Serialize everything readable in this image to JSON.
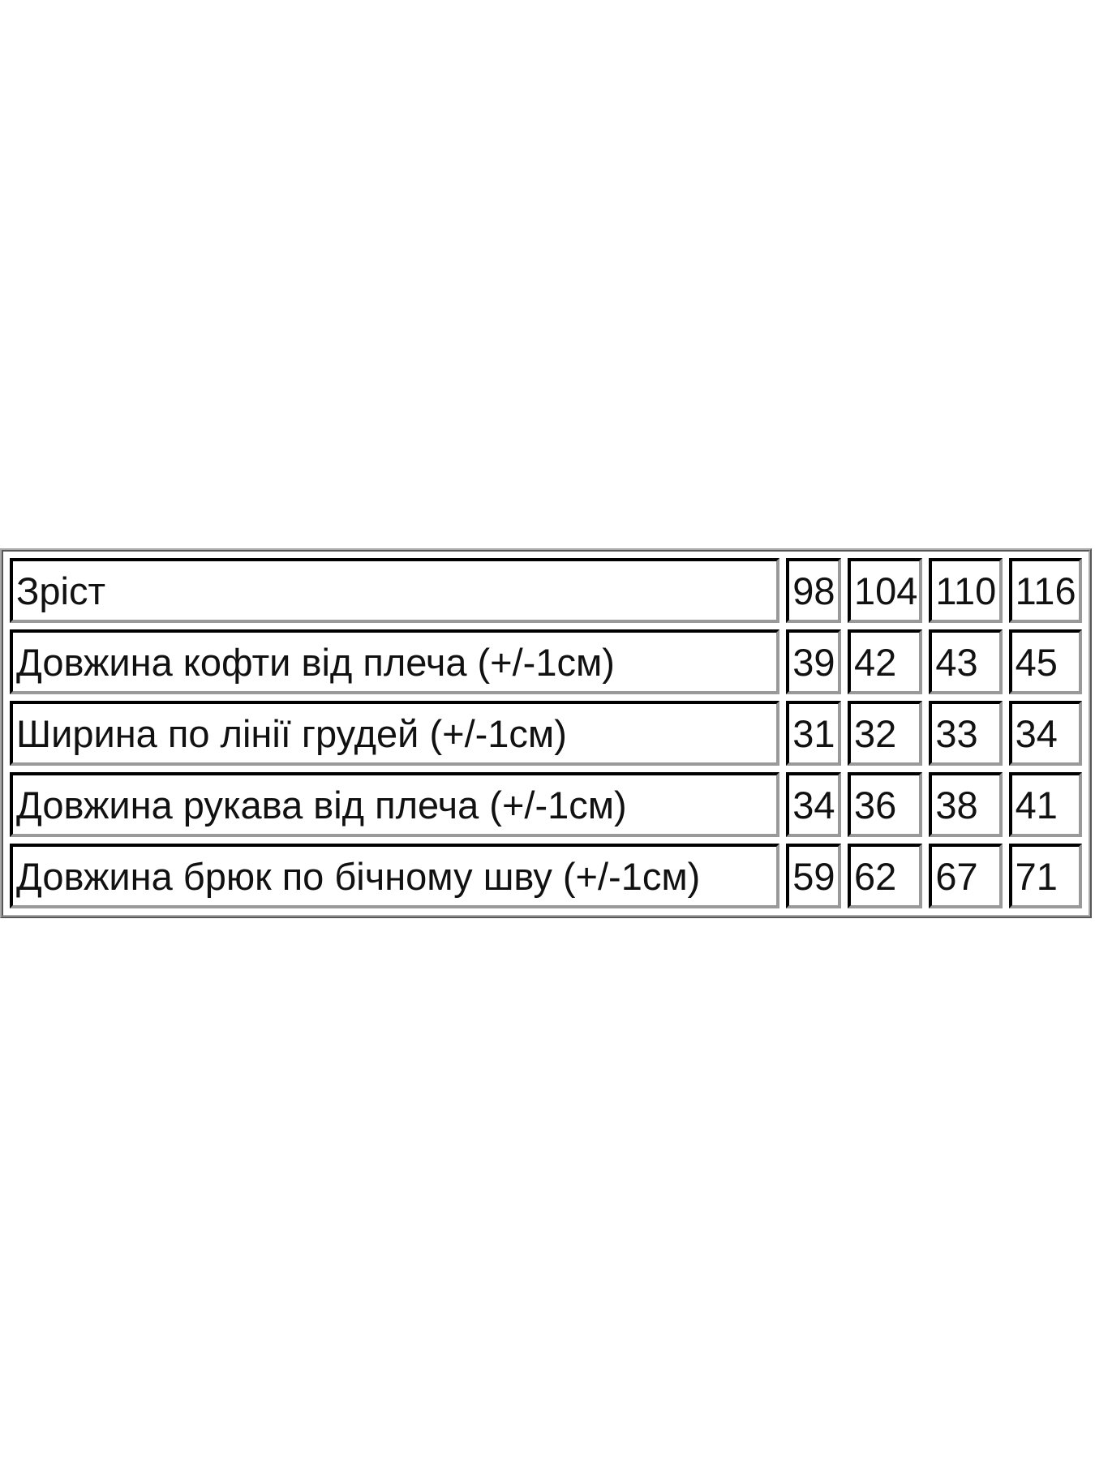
{
  "table": {
    "rows": [
      {
        "label": "Зріст",
        "values": [
          "98",
          "104",
          "110",
          "116"
        ]
      },
      {
        "label": "Довжина кофти від плеча (+/-1см)",
        "values": [
          "39",
          "42",
          "43",
          "45"
        ]
      },
      {
        "label": "Ширина по лінії грудей (+/-1см)",
        "values": [
          "31",
          "32",
          "33",
          "34"
        ]
      },
      {
        "label": "Довжина рукава від плеча (+/-1см)",
        "values": [
          "34",
          "36",
          "38",
          "41"
        ]
      },
      {
        "label": "Довжина брюк по бічному шву (+/-1см)",
        "values": [
          "59",
          "62",
          "67",
          "71"
        ]
      }
    ]
  }
}
